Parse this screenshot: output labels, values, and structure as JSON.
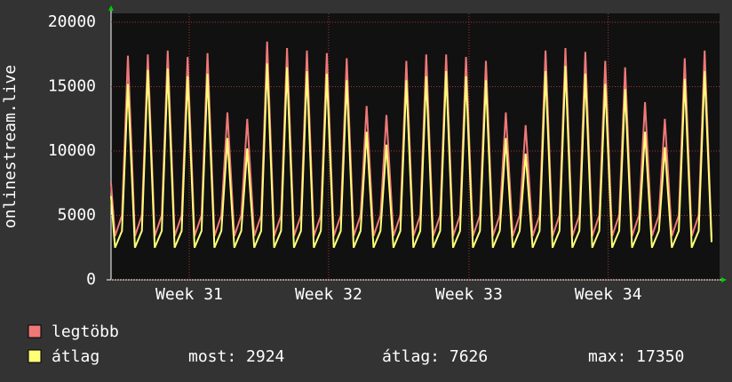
{
  "chart_data": {
    "type": "line",
    "y_label": "onlinestream.live",
    "xlim": [
      0,
      30.6
    ],
    "xticks": [
      {
        "value": 3.93,
        "label": "Week 31"
      },
      {
        "value": 10.94,
        "label": "Week 32"
      },
      {
        "value": 18.0,
        "label": "Week 33"
      },
      {
        "value": 25.0,
        "label": "Week 34"
      }
    ],
    "ylim": [
      0,
      20000
    ],
    "yticks": [
      0,
      5000,
      10000,
      15000,
      20000
    ],
    "grid": true,
    "x": [
      0,
      0.2,
      0.55,
      0.85,
      1.2,
      1.55,
      1.85,
      2.2,
      2.55,
      2.85,
      3.2,
      3.55,
      3.85,
      4.2,
      4.55,
      4.85,
      5.2,
      5.55,
      5.85,
      6.2,
      6.55,
      6.85,
      7.2,
      7.55,
      7.85,
      8.2,
      8.55,
      8.85,
      9.2,
      9.55,
      9.85,
      10.2,
      10.55,
      10.85,
      11.2,
      11.55,
      11.85,
      12.2,
      12.55,
      12.85,
      13.2,
      13.55,
      13.85,
      14.2,
      14.55,
      14.85,
      15.2,
      15.55,
      15.85,
      16.2,
      16.55,
      16.85,
      17.2,
      17.55,
      17.85,
      18.2,
      18.55,
      18.85,
      19.2,
      19.55,
      19.85,
      20.2,
      20.55,
      20.85,
      21.2,
      21.55,
      21.85,
      22.2,
      22.55,
      22.85,
      23.2,
      23.55,
      23.85,
      24.2,
      24.55,
      24.85,
      25.2,
      25.55,
      25.85,
      26.2,
      26.55,
      26.85,
      27.2,
      27.55,
      27.85,
      28.2,
      28.55,
      28.85,
      29.2,
      29.55,
      29.85,
      30.2
    ],
    "series": [
      {
        "name": "legtöbb",
        "color": "#f07878",
        "values": [
          7500,
          3400,
          5000,
          17400,
          3400,
          5000,
          17500,
          3400,
          5000,
          17800,
          3400,
          5000,
          17300,
          3400,
          5000,
          17600,
          3400,
          5000,
          13000,
          3400,
          5000,
          12500,
          3400,
          5000,
          18500,
          3400,
          5000,
          18000,
          3400,
          5000,
          17800,
          3400,
          5000,
          17600,
          3400,
          5000,
          17200,
          3400,
          5000,
          13500,
          3400,
          5000,
          12800,
          3400,
          5000,
          17000,
          3400,
          5000,
          17500,
          3400,
          5000,
          17500,
          3400,
          5000,
          17300,
          3400,
          5000,
          17000,
          3400,
          5000,
          13000,
          3400,
          5000,
          12000,
          3400,
          5000,
          17800,
          3400,
          5000,
          18000,
          3400,
          5000,
          17700,
          3400,
          5000,
          17000,
          3400,
          5000,
          16500,
          3400,
          5000,
          13800,
          3400,
          5000,
          12500,
          3400,
          5000,
          17200,
          3400,
          5000,
          17800,
          3300
        ]
      },
      {
        "name": "átlag",
        "color": "#ffff78",
        "values": [
          6500,
          2500,
          3800,
          15200,
          2500,
          3800,
          16300,
          2500,
          3800,
          16400,
          2500,
          3800,
          15800,
          2500,
          3800,
          16000,
          2500,
          3800,
          11000,
          2500,
          3800,
          10200,
          2500,
          3800,
          16800,
          2500,
          3800,
          16500,
          2500,
          3800,
          16200,
          2500,
          3800,
          16000,
          2500,
          3800,
          15500,
          2500,
          3800,
          11500,
          2500,
          3800,
          10500,
          2500,
          3800,
          15500,
          2500,
          3800,
          15800,
          2500,
          3800,
          16200,
          2500,
          3800,
          15800,
          2500,
          3800,
          15500,
          2500,
          3800,
          11000,
          2500,
          3800,
          9800,
          2500,
          3800,
          16200,
          2500,
          3800,
          16600,
          2500,
          3800,
          16000,
          2500,
          3800,
          15200,
          2500,
          3800,
          14800,
          2500,
          3800,
          11500,
          2500,
          3800,
          10300,
          2500,
          3800,
          15600,
          2500,
          3800,
          16200,
          2924
        ]
      }
    ],
    "stats": [
      "most: 2924",
      "átlag: 7626",
      "max: 17350"
    ]
  }
}
